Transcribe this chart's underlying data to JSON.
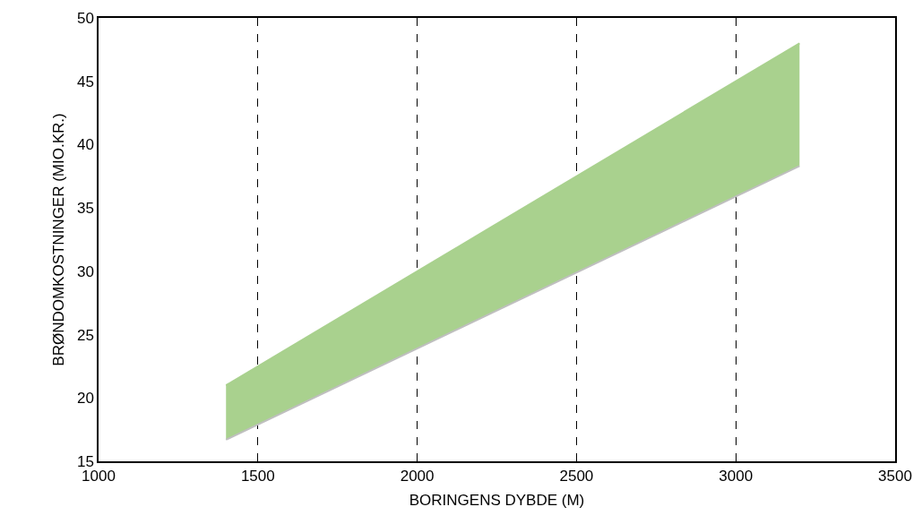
{
  "chart_data": {
    "type": "area",
    "xlabel": "BORINGENS DYBDE (M)",
    "ylabel": "BRØNDOMKOSTNINGER (MIO.KR.)",
    "x": [
      1400,
      3200
    ],
    "series": [
      {
        "type": "line",
        "color": "#bfbfbf",
        "values": [
          16.7,
          38.3
        ]
      },
      {
        "color": "#a9d18e",
        "values": [
          21,
          48
        ]
      }
    ],
    "xlim": [
      1000,
      3500
    ],
    "xticks": [
      1000,
      1500,
      2000,
      2500,
      3000,
      3500
    ],
    "ylim": [
      15,
      50
    ],
    "yticks": [
      15,
      20,
      25,
      30,
      35,
      40,
      45,
      50
    ],
    "grid": "x"
  }
}
